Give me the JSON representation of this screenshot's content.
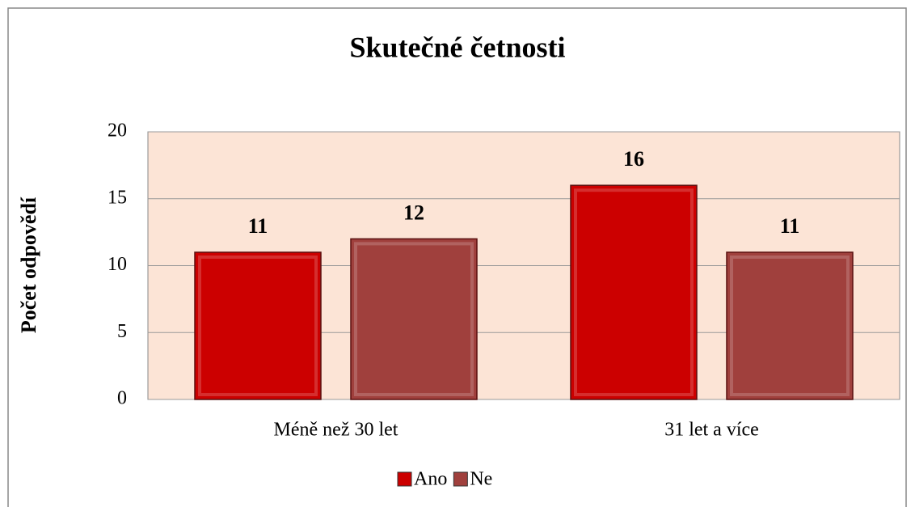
{
  "chart_data": {
    "type": "bar",
    "title": "Skutečné četnosti",
    "y_label": "Počet odpovědí",
    "categories": [
      "Méně než 30 let",
      "31 let a více"
    ],
    "series": [
      {
        "name": "Ano",
        "color": "#cc0000",
        "values": [
          11,
          16
        ]
      },
      {
        "name": "Ne",
        "color": "#a0403d",
        "values": [
          12,
          11
        ]
      }
    ],
    "ylim": [
      0,
      20
    ],
    "yticks": [
      0,
      5,
      10,
      15,
      20
    ],
    "grid": true,
    "legend": "bottom"
  }
}
